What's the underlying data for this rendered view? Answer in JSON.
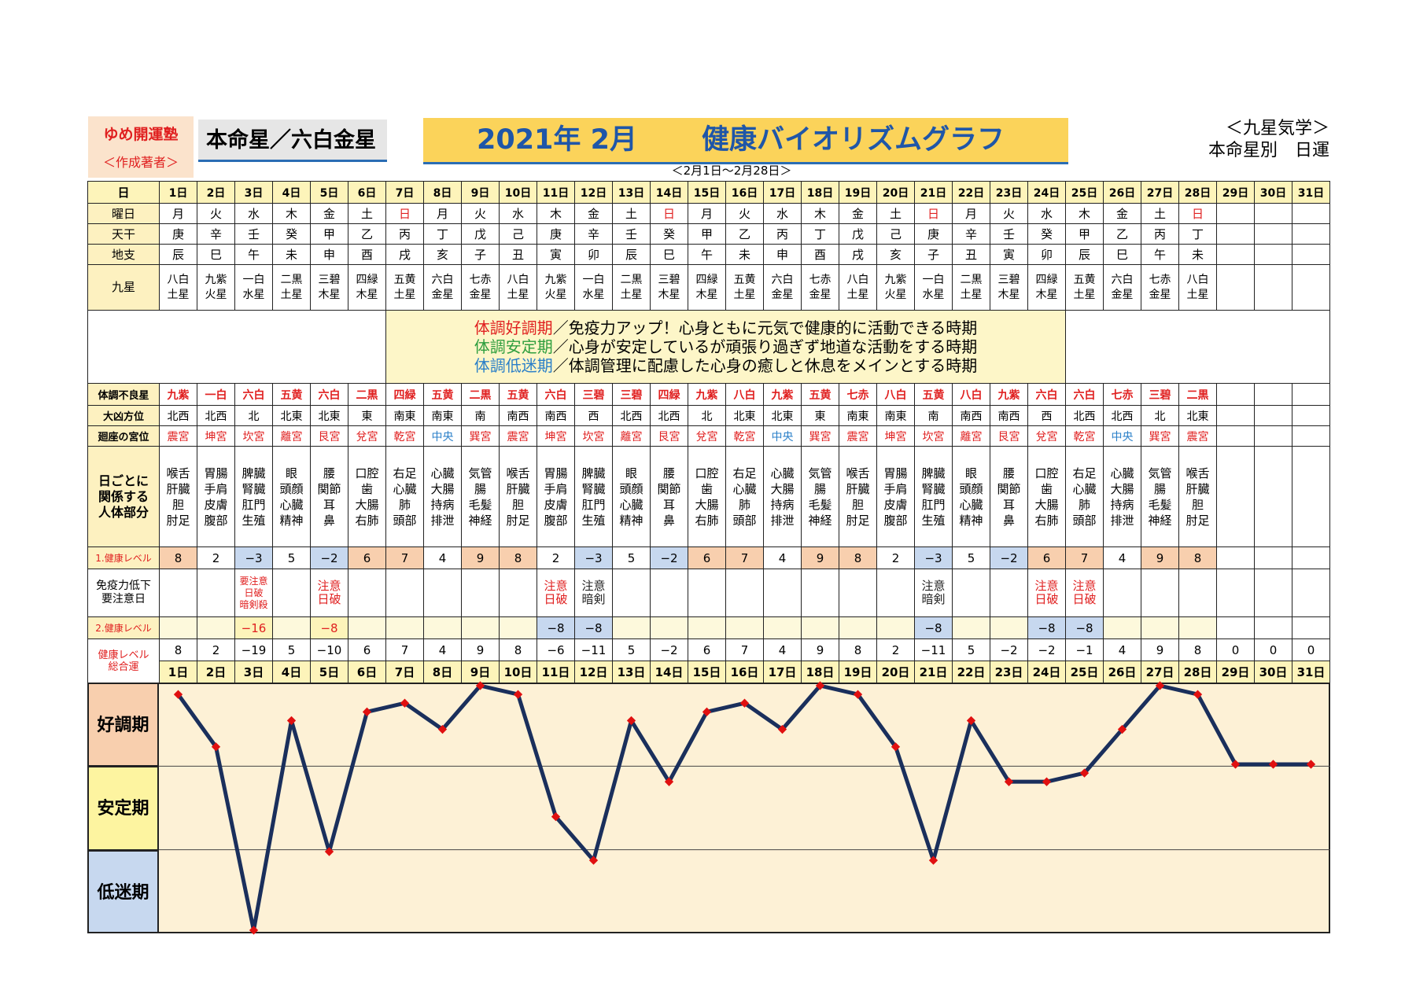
{
  "header": {
    "brand_name": "ゆめ開運塾",
    "brand_sub": "＜作成著者＞",
    "honmei": "本命星／六白金星",
    "title_date": "2021年 2月",
    "title_main": "健康バイオリズムグラフ",
    "period": "＜2月1日～2月28日＞",
    "kyusei_line1": "＜九星気学＞",
    "kyusei_line2": "本命星別　日運"
  },
  "labels": {
    "day": "日",
    "weekday": "曜日",
    "tenkan": "天干",
    "chishi": "地支",
    "kyusei": "九星",
    "bad_star": "体調不良星",
    "direction": "大凶方位",
    "palace": "廻座の宮位",
    "body": [
      "日ごとに",
      "関係する",
      "人体部分"
    ],
    "level1": "1.健康レベル",
    "immune": [
      "免疫力低下",
      "要注意日"
    ],
    "level2": "2.健康レベル",
    "total": [
      "健康レベル",
      "総合運"
    ]
  },
  "legend": [
    {
      "head": "体調好調期",
      "rest": "／免疫力アップ！心身ともに元気で健康的に活動できる時期",
      "color": "#e02020"
    },
    {
      "head": "体調安定期",
      "rest": "／心身が安定しているが頑張り過ぎず地道な活動をする時期",
      "color": "#2e9e3e"
    },
    {
      "head": "体調低迷期",
      "rest": "／体調管理に配慮した心身の癒しと休息をメインとする時期",
      "color": "#2a7fc8"
    }
  ],
  "days": [
    "1日",
    "2日",
    "3日",
    "4日",
    "5日",
    "6日",
    "7日",
    "8日",
    "9日",
    "10日",
    "11日",
    "12日",
    "13日",
    "14日",
    "15日",
    "16日",
    "17日",
    "18日",
    "19日",
    "20日",
    "21日",
    "22日",
    "23日",
    "24日",
    "25日",
    "26日",
    "27日",
    "28日",
    "29日",
    "30日",
    "31日"
  ],
  "weekdays": [
    "月",
    "火",
    "水",
    "木",
    "金",
    "土",
    "日",
    "月",
    "火",
    "水",
    "木",
    "金",
    "土",
    "日",
    "月",
    "火",
    "水",
    "木",
    "金",
    "土",
    "日",
    "月",
    "火",
    "水",
    "木",
    "金",
    "土",
    "日",
    "",
    "",
    ""
  ],
  "tenkan": [
    "庚",
    "辛",
    "壬",
    "癸",
    "甲",
    "乙",
    "丙",
    "丁",
    "戊",
    "己",
    "庚",
    "辛",
    "壬",
    "癸",
    "甲",
    "乙",
    "丙",
    "丁",
    "戊",
    "己",
    "庚",
    "辛",
    "壬",
    "癸",
    "甲",
    "乙",
    "丙",
    "丁",
    "",
    "",
    ""
  ],
  "chishi": [
    "辰",
    "巳",
    "午",
    "未",
    "申",
    "酉",
    "戌",
    "亥",
    "子",
    "丑",
    "寅",
    "卯",
    "辰",
    "巳",
    "午",
    "未",
    "申",
    "酉",
    "戌",
    "亥",
    "子",
    "丑",
    "寅",
    "卯",
    "辰",
    "巳",
    "午",
    "未",
    "",
    "",
    ""
  ],
  "kyusei": [
    [
      "八白",
      "土星"
    ],
    [
      "九紫",
      "火星"
    ],
    [
      "一白",
      "水星"
    ],
    [
      "二黒",
      "土星"
    ],
    [
      "三碧",
      "木星"
    ],
    [
      "四緑",
      "木星"
    ],
    [
      "五黄",
      "土星"
    ],
    [
      "六白",
      "金星"
    ],
    [
      "七赤",
      "金星"
    ],
    [
      "八白",
      "土星"
    ],
    [
      "九紫",
      "火星"
    ],
    [
      "一白",
      "水星"
    ],
    [
      "二黒",
      "土星"
    ],
    [
      "三碧",
      "木星"
    ],
    [
      "四緑",
      "木星"
    ],
    [
      "五黄",
      "土星"
    ],
    [
      "六白",
      "金星"
    ],
    [
      "七赤",
      "金星"
    ],
    [
      "八白",
      "土星"
    ],
    [
      "九紫",
      "火星"
    ],
    [
      "一白",
      "水星"
    ],
    [
      "二黒",
      "土星"
    ],
    [
      "三碧",
      "木星"
    ],
    [
      "四緑",
      "木星"
    ],
    [
      "五黄",
      "土星"
    ],
    [
      "六白",
      "金星"
    ],
    [
      "七赤",
      "金星"
    ],
    [
      "八白",
      "土星"
    ],
    [
      "",
      ""
    ],
    [
      "",
      ""
    ],
    [
      "",
      ""
    ]
  ],
  "bad_star": [
    "九紫",
    "一白",
    "六白",
    "五黄",
    "六白",
    "二黒",
    "四緑",
    "五黄",
    "二黒",
    "五黄",
    "六白",
    "三碧",
    "三碧",
    "四緑",
    "九紫",
    "八白",
    "九紫",
    "五黄",
    "七赤",
    "八白",
    "五黄",
    "八白",
    "九紫",
    "六白",
    "六白",
    "七赤",
    "三碧",
    "二黒",
    "",
    "",
    ""
  ],
  "direction": [
    "北西",
    "北西",
    "北",
    "北東",
    "北東",
    "東",
    "南東",
    "南東",
    "南",
    "南西",
    "南西",
    "西",
    "北西",
    "北西",
    "北",
    "北東",
    "北東",
    "東",
    "南東",
    "南東",
    "南",
    "南西",
    "南西",
    "西",
    "北西",
    "北西",
    "北",
    "北東",
    "",
    "",
    ""
  ],
  "palace": [
    "震宮",
    "坤宮",
    "坎宮",
    "離宮",
    "艮宮",
    "兌宮",
    "乾宮",
    "中央",
    "巽宮",
    "震宮",
    "坤宮",
    "坎宮",
    "離宮",
    "艮宮",
    "兌宮",
    "乾宮",
    "中央",
    "巽宮",
    "震宮",
    "坤宮",
    "坎宮",
    "離宮",
    "艮宮",
    "兌宮",
    "乾宮",
    "中央",
    "巽宮",
    "震宮",
    "",
    "",
    ""
  ],
  "body": [
    [
      "喉舌",
      "肝臓",
      "胆",
      "肘足"
    ],
    [
      "胃腸",
      "手肩",
      "皮膚",
      "腹部"
    ],
    [
      "脾臓",
      "腎臓",
      "肛門",
      "生殖"
    ],
    [
      "眼",
      "頭顔",
      "心臓",
      "精神"
    ],
    [
      "腰",
      "関節",
      "耳",
      "鼻"
    ],
    [
      "口腔",
      "歯",
      "大腸",
      "右肺"
    ],
    [
      "右足",
      "心臓",
      "肺",
      "頭部"
    ],
    [
      "心臓",
      "大腸",
      "持病",
      "排泄"
    ],
    [
      "気管",
      "腸",
      "毛髪",
      "神経"
    ],
    [
      "喉舌",
      "肝臓",
      "胆",
      "肘足"
    ],
    [
      "胃腸",
      "手肩",
      "皮膚",
      "腹部"
    ],
    [
      "脾臓",
      "腎臓",
      "肛門",
      "生殖"
    ],
    [
      "眼",
      "頭顔",
      "心臓",
      "精神"
    ],
    [
      "腰",
      "関節",
      "耳",
      "鼻"
    ],
    [
      "口腔",
      "歯",
      "大腸",
      "右肺"
    ],
    [
      "右足",
      "心臓",
      "肺",
      "頭部"
    ],
    [
      "心臓",
      "大腸",
      "持病",
      "排泄"
    ],
    [
      "気管",
      "腸",
      "毛髪",
      "神経"
    ],
    [
      "喉舌",
      "肝臓",
      "胆",
      "肘足"
    ],
    [
      "胃腸",
      "手肩",
      "皮膚",
      "腹部"
    ],
    [
      "脾臓",
      "腎臓",
      "肛門",
      "生殖"
    ],
    [
      "眼",
      "頭顔",
      "心臓",
      "精神"
    ],
    [
      "腰",
      "関節",
      "耳",
      "鼻"
    ],
    [
      "口腔",
      "歯",
      "大腸",
      "右肺"
    ],
    [
      "右足",
      "心臓",
      "肺",
      "頭部"
    ],
    [
      "心臓",
      "大腸",
      "持病",
      "排泄"
    ],
    [
      "気管",
      "腸",
      "毛髪",
      "神経"
    ],
    [
      "喉舌",
      "肝臓",
      "胆",
      "肘足"
    ],
    [],
    [],
    []
  ],
  "level1": [
    "8",
    "2",
    "−3",
    "5",
    "−2",
    "6",
    "7",
    "4",
    "9",
    "8",
    "2",
    "−3",
    "5",
    "−2",
    "6",
    "7",
    "4",
    "9",
    "8",
    "2",
    "−3",
    "5",
    "−2",
    "6",
    "7",
    "4",
    "9",
    "8",
    "",
    "",
    ""
  ],
  "immune": [
    [],
    [],
    [
      "要注意",
      "日破",
      "暗剣殺"
    ],
    [],
    [
      "注意",
      "日破"
    ],
    [],
    [],
    [],
    [],
    [],
    [
      "注意",
      "日破"
    ],
    [
      "注意",
      "暗剣"
    ],
    [],
    [],
    [],
    [],
    [],
    [],
    [],
    [],
    [
      "注意",
      "暗剣"
    ],
    [],
    [],
    [
      "注意",
      "日破"
    ],
    [
      "注意",
      "日破"
    ],
    [],
    [],
    [],
    [],
    [],
    []
  ],
  "level2": [
    "",
    "",
    "−16",
    "",
    "−8",
    "",
    "",
    "",
    "",
    "",
    "−8",
    "−8",
    "",
    "",
    "",
    "",
    "",
    "",
    "",
    "",
    "−8",
    "",
    "",
    "−8",
    "−8",
    "",
    "",
    "",
    "",
    "",
    ""
  ],
  "total": [
    "8",
    "2",
    "−19",
    "5",
    "−10",
    "6",
    "7",
    "4",
    "9",
    "8",
    "−6",
    "−11",
    "5",
    "−2",
    "6",
    "7",
    "4",
    "9",
    "8",
    "2",
    "−11",
    "5",
    "−2",
    "−2",
    "−1",
    "4",
    "9",
    "8",
    "0",
    "0",
    "0"
  ],
  "zones": {
    "good": "好調期",
    "stable": "安定期",
    "low": "低迷期"
  },
  "colors": {
    "line": "#1a2f5c",
    "marker": "#e01010",
    "good_bg": "#f8cfae",
    "stable_bg": "#fdf4a0",
    "low_bg": "#c7d8ef"
  },
  "chart_data": {
    "type": "line",
    "categories": [
      "1日",
      "2日",
      "3日",
      "4日",
      "5日",
      "6日",
      "7日",
      "8日",
      "9日",
      "10日",
      "11日",
      "12日",
      "13日",
      "14日",
      "15日",
      "16日",
      "17日",
      "18日",
      "19日",
      "20日",
      "21日",
      "22日",
      "23日",
      "24日",
      "25日",
      "26日",
      "27日",
      "28日",
      "29日",
      "30日",
      "31日"
    ],
    "series": [
      {
        "values": [
          8,
          2,
          -19,
          5,
          -10,
          6,
          7,
          4,
          9,
          8,
          -6,
          -11,
          5,
          -2,
          6,
          7,
          4,
          9,
          8,
          2,
          -11,
          5,
          -2,
          -2,
          -1,
          4,
          9,
          8,
          0,
          0,
          0
        ]
      }
    ],
    "ylim": [
      -19,
      9
    ],
    "bands": [
      {
        "label": "好調期"
      },
      {
        "label": "安定期"
      },
      {
        "label": "低迷期"
      }
    ],
    "grid": false
  }
}
